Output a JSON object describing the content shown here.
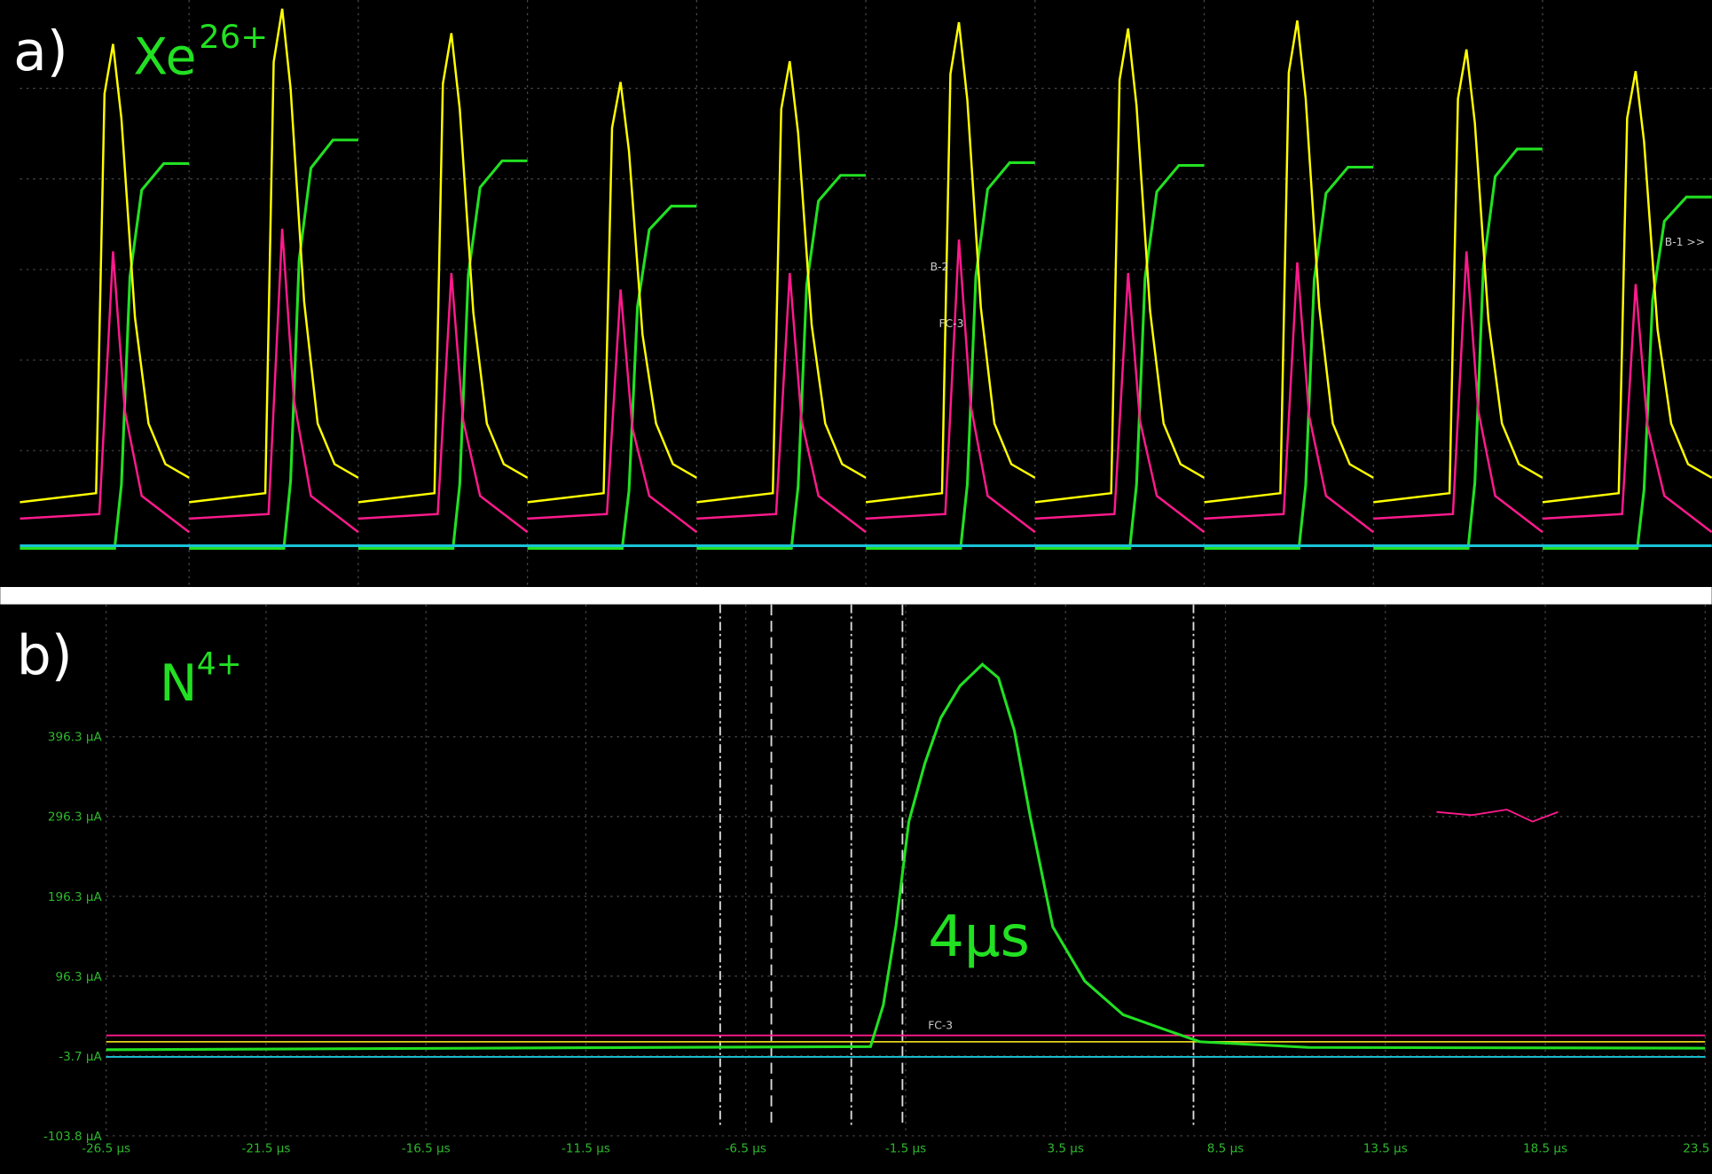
{
  "chart_data": [
    {
      "type": "pulse_train",
      "panel_label": "a)",
      "ion": "Xe",
      "charge": "26+",
      "ylim": [
        -0.5,
        6.0
      ],
      "series": [
        {
          "name": "yellow",
          "color": "#ffff00",
          "baseline": 0.43,
          "values": [
            5.49,
            5.88,
            5.61,
            5.07,
            5.3,
            5.73,
            5.66,
            5.75,
            5.43,
            5.19
          ]
        },
        {
          "name": "pink",
          "color": "#ff1a8c",
          "baseline": 0.25,
          "values": [
            3.2,
            3.45,
            2.96,
            2.78,
            2.96,
            3.33,
            2.96,
            3.08,
            3.2,
            2.84
          ]
        },
        {
          "name": "green",
          "color": "#22e022",
          "baseline": -0.08,
          "values": [
            4.17,
            4.43,
            4.2,
            3.7,
            4.04,
            4.18,
            4.15,
            4.13,
            4.33,
            3.8
          ]
        }
      ],
      "cyan_level": -0.05,
      "cyan_color": "#19c3d6",
      "annotations": [
        "B-2",
        "FC-3",
        "B-1 >>"
      ]
    },
    {
      "type": "line",
      "panel_label": "b)",
      "ion": "N",
      "charge": "4+",
      "pulse_label": "4µs",
      "xlim": [
        -26.5,
        23.5
      ],
      "ylim": [
        -103.8,
        562
      ],
      "xticks": [
        {
          "value": -26.5,
          "label": "-26.5 µs"
        },
        {
          "value": -21.5,
          "label": "-21.5 µs"
        },
        {
          "value": -16.5,
          "label": "-16.5 µs"
        },
        {
          "value": -11.5,
          "label": "-11.5 µs"
        },
        {
          "value": -6.5,
          "label": "-6.5 µs"
        },
        {
          "value": -1.5,
          "label": "-1.5 µs"
        },
        {
          "value": 3.5,
          "label": "3.5 µs"
        },
        {
          "value": 8.5,
          "label": "8.5 µs"
        },
        {
          "value": 13.5,
          "label": "13.5 µs"
        },
        {
          "value": 18.5,
          "label": "18.5 µs"
        },
        {
          "value": 23.5,
          "label": "23.5 µs"
        }
      ],
      "yticks": [
        {
          "value": -103.8,
          "label": "-103.8 µA"
        },
        {
          "value": -3.7,
          "label": "-3.7 µA"
        },
        {
          "value": 96.3,
          "label": "96.3 µA"
        },
        {
          "value": 196.3,
          "label": "196.3 µA"
        },
        {
          "value": 296.3,
          "label": "296.3 µA"
        },
        {
          "value": 396.3,
          "label": "396.3 µA"
        }
      ],
      "grid": true,
      "cursors": [
        -7.3,
        -5.7,
        -3.2,
        -1.6,
        7.5
      ],
      "series": [
        {
          "name": "pink",
          "color": "#ff1a8c",
          "x": [
            -26.5,
            23.5
          ],
          "values": [
            22,
            22
          ]
        },
        {
          "name": "yellow",
          "color": "#e6d21e",
          "x": [
            -26.5,
            23.5
          ],
          "values": [
            14,
            14
          ]
        },
        {
          "name": "cyan",
          "color": "#19c3d6",
          "x": [
            -26.5,
            23.5
          ],
          "values": [
            -5,
            -5
          ]
        },
        {
          "name": "green",
          "color": "#22e022",
          "x": [
            -26.5,
            -2.6,
            -2.2,
            -1.8,
            -1.4,
            -0.9,
            -0.4,
            0.2,
            0.9,
            1.4,
            1.9,
            2.4,
            3.1,
            4.1,
            5.3,
            6.7,
            7.7,
            11.1,
            23.5
          ],
          "values": [
            4,
            8,
            60,
            160,
            290,
            363,
            420,
            460,
            487,
            470,
            404,
            295,
            158,
            90,
            48,
            28,
            14,
            7,
            6
          ]
        },
        {
          "name": "pink-fragment",
          "color": "#ff1a8c",
          "x": [
            15.1,
            16.2,
            17.3,
            18.1,
            18.9
          ],
          "values": [
            302,
            298,
            305,
            290,
            302
          ]
        }
      ],
      "annotations": [
        "FC-3"
      ]
    }
  ]
}
